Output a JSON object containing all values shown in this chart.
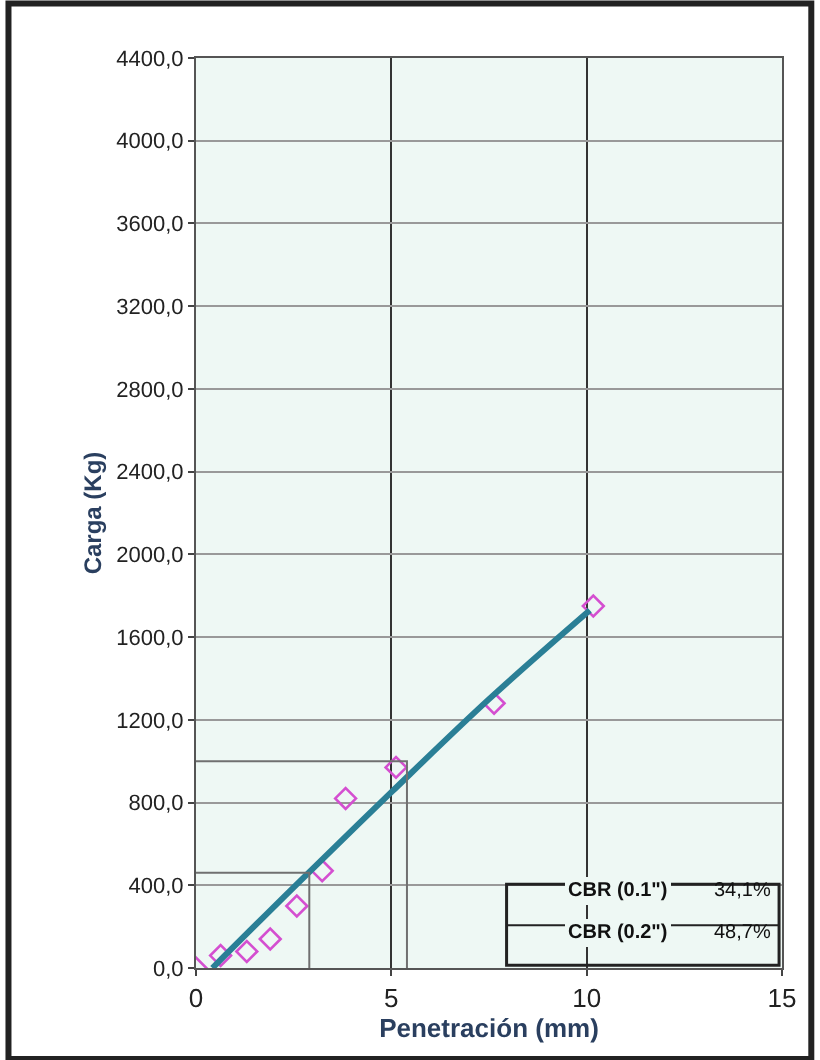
{
  "chart_data": {
    "type": "scatter",
    "xlabel": "Penetración (mm)",
    "ylabel": "Carga (Kg)",
    "xlim": [
      0,
      15
    ],
    "xticks": [
      0,
      5,
      10,
      15
    ],
    "ylim": [
      0,
      4400
    ],
    "yticks": [
      {
        "value": 0,
        "label": "0,0"
      },
      {
        "value": 400,
        "label": "400,0"
      },
      {
        "value": 800,
        "label": "800,0"
      },
      {
        "value": 1200,
        "label": "1200,0"
      },
      {
        "value": 1600,
        "label": "1600,0"
      },
      {
        "value": 2000,
        "label": "2000,0"
      },
      {
        "value": 2400,
        "label": "2400,0"
      },
      {
        "value": 2800,
        "label": "2800,0"
      },
      {
        "value": 3200,
        "label": "3200,0"
      },
      {
        "value": 3600,
        "label": "3600,0"
      },
      {
        "value": 4000,
        "label": "4000,0"
      },
      {
        "value": 4400,
        "label": "4400,0"
      }
    ],
    "grid": true,
    "series": [
      {
        "marker": "diamond",
        "color": "#d44fd0",
        "x": [
          0,
          0.63,
          1.3,
          1.9,
          2.58,
          3.23,
          3.83,
          5.12,
          7.63,
          10.17
        ],
        "values": [
          0,
          60,
          80,
          140,
          300,
          470,
          820,
          970,
          1280,
          1750
        ]
      },
      {
        "type": "line",
        "color": "#2a7f96",
        "x": [
          0.42,
          2.5,
          5,
          7.5,
          10.08
        ],
        "values": [
          0,
          390,
          850,
          1300,
          1730
        ]
      },
      {
        "type": "line",
        "color": "#707070",
        "x": [
          0,
          2.9,
          2.9
        ],
        "values": [
          460,
          460,
          0
        ]
      },
      {
        "type": "line",
        "color": "#707070",
        "x": [
          0,
          5.4,
          5.4
        ],
        "values": [
          1000,
          1000,
          0
        ]
      }
    ],
    "annotations": [
      "CBR (0.1\")",
      "34,1%",
      "CBR (0.2\")",
      "48,7%"
    ]
  }
}
